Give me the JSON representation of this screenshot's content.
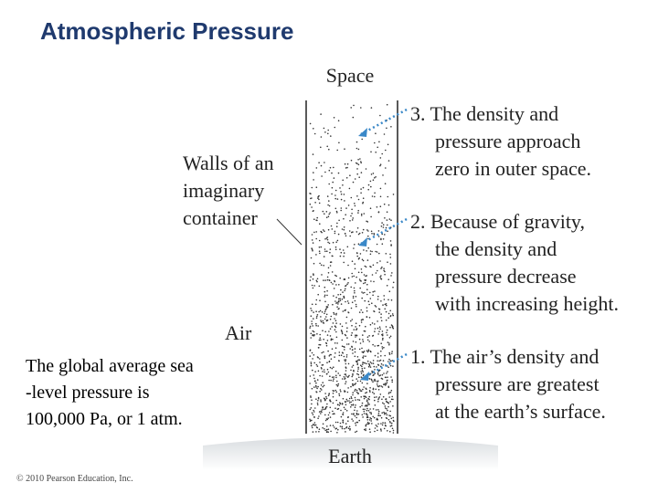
{
  "title": "Atmospheric Pressure",
  "labels": {
    "space": "Space",
    "walls": [
      "Walls of an",
      "imaginary",
      "container"
    ],
    "air": "Air",
    "earth": "Earth"
  },
  "notes": [
    [
      "3. The density and",
      "pressure approach",
      "zero in outer space."
    ],
    [
      "2. Because of gravity,",
      "the density and",
      "pressure decrease",
      "with increasing height."
    ],
    [
      "1. The air’s density and",
      "pressure are greatest",
      "at the earth’s surface."
    ]
  ],
  "caption": [
    "The global average sea",
    "-level pressure is",
    "100,000 Pa, or 1 atm."
  ],
  "copyright": "© 2010 Pearson Education, Inc."
}
